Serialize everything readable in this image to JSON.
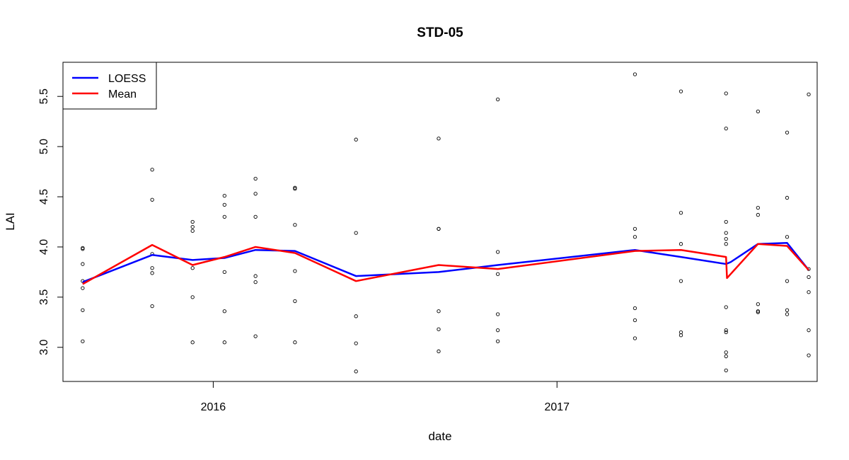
{
  "chart_data": {
    "type": "line",
    "title": "STD-05",
    "xlabel": "date",
    "ylabel": "LAI",
    "x_ticks": [
      "2016",
      "2017"
    ],
    "y_ticks": [
      "3.0",
      "3.5",
      "4.0",
      "4.5",
      "5.0",
      "5.5"
    ],
    "xlim": [
      "2015-07-25",
      "2017-10-05"
    ],
    "ylim": [
      2.66,
      5.84
    ],
    "grid": false,
    "legend_position": "top-left",
    "series": [
      {
        "name": "LOESS",
        "color": "#0000ff",
        "kind": "line",
        "points": [
          [
            "2015-08-15",
            3.65
          ],
          [
            "2015-10-28",
            3.92
          ],
          [
            "2015-12-10",
            3.87
          ],
          [
            "2016-01-13",
            3.89
          ],
          [
            "2016-02-15",
            3.97
          ],
          [
            "2016-03-28",
            3.96
          ],
          [
            "2016-06-01",
            3.71
          ],
          [
            "2016-08-28",
            3.75
          ],
          [
            "2016-10-30",
            3.82
          ],
          [
            "2017-03-25",
            3.97
          ],
          [
            "2017-05-13",
            3.9
          ],
          [
            "2017-06-30",
            3.83
          ],
          [
            "2017-07-05",
            3.85
          ],
          [
            "2017-08-03",
            4.03
          ],
          [
            "2017-09-03",
            4.04
          ],
          [
            "2017-09-26",
            3.77
          ]
        ]
      },
      {
        "name": "Mean",
        "color": "#ff0000",
        "kind": "line",
        "points": [
          [
            "2015-08-15",
            3.63
          ],
          [
            "2015-10-28",
            4.02
          ],
          [
            "2015-12-10",
            3.82
          ],
          [
            "2016-01-13",
            3.9
          ],
          [
            "2016-02-15",
            4.0
          ],
          [
            "2016-03-28",
            3.94
          ],
          [
            "2016-06-01",
            3.66
          ],
          [
            "2016-08-28",
            3.82
          ],
          [
            "2016-10-30",
            3.78
          ],
          [
            "2017-03-25",
            3.96
          ],
          [
            "2017-05-13",
            3.97
          ],
          [
            "2017-06-30",
            3.9
          ],
          [
            "2017-07-01",
            3.69
          ],
          [
            "2017-08-03",
            4.03
          ],
          [
            "2017-09-03",
            4.01
          ],
          [
            "2017-09-26",
            3.77
          ]
        ]
      },
      {
        "name": "",
        "color": "#000000",
        "kind": "scatter",
        "points": [
          [
            "2015-08-15",
            3.99
          ],
          [
            "2015-08-15",
            3.98
          ],
          [
            "2015-08-15",
            3.83
          ],
          [
            "2015-08-15",
            3.66
          ],
          [
            "2015-08-15",
            3.59
          ],
          [
            "2015-08-15",
            3.37
          ],
          [
            "2015-08-15",
            3.06
          ],
          [
            "2015-10-28",
            4.77
          ],
          [
            "2015-10-28",
            4.47
          ],
          [
            "2015-10-28",
            3.93
          ],
          [
            "2015-10-28",
            3.79
          ],
          [
            "2015-10-28",
            3.74
          ],
          [
            "2015-10-28",
            3.41
          ],
          [
            "2015-12-10",
            4.25
          ],
          [
            "2015-12-10",
            4.2
          ],
          [
            "2015-12-10",
            4.16
          ],
          [
            "2015-12-10",
            3.79
          ],
          [
            "2015-12-10",
            3.5
          ],
          [
            "2015-12-10",
            3.05
          ],
          [
            "2016-01-13",
            4.51
          ],
          [
            "2016-01-13",
            4.42
          ],
          [
            "2016-01-13",
            4.3
          ],
          [
            "2016-01-13",
            3.75
          ],
          [
            "2016-01-13",
            3.36
          ],
          [
            "2016-01-13",
            3.05
          ],
          [
            "2016-02-15",
            4.68
          ],
          [
            "2016-02-15",
            4.53
          ],
          [
            "2016-02-15",
            4.3
          ],
          [
            "2016-02-15",
            3.71
          ],
          [
            "2016-02-15",
            3.65
          ],
          [
            "2016-02-15",
            3.11
          ],
          [
            "2016-03-28",
            4.59
          ],
          [
            "2016-03-28",
            4.58
          ],
          [
            "2016-03-28",
            4.22
          ],
          [
            "2016-03-28",
            3.76
          ],
          [
            "2016-03-28",
            3.46
          ],
          [
            "2016-03-28",
            3.05
          ],
          [
            "2016-06-01",
            5.07
          ],
          [
            "2016-06-01",
            4.14
          ],
          [
            "2016-06-01",
            3.31
          ],
          [
            "2016-06-01",
            3.04
          ],
          [
            "2016-06-01",
            2.76
          ],
          [
            "2016-08-28",
            5.08
          ],
          [
            "2016-08-28",
            4.18
          ],
          [
            "2016-08-28",
            4.18
          ],
          [
            "2016-08-28",
            3.36
          ],
          [
            "2016-08-28",
            3.18
          ],
          [
            "2016-08-28",
            2.96
          ],
          [
            "2016-10-30",
            5.47
          ],
          [
            "2016-10-30",
            3.95
          ],
          [
            "2016-10-30",
            3.73
          ],
          [
            "2016-10-30",
            3.33
          ],
          [
            "2016-10-30",
            3.17
          ],
          [
            "2016-10-30",
            3.06
          ],
          [
            "2017-03-25",
            5.72
          ],
          [
            "2017-03-25",
            4.18
          ],
          [
            "2017-03-25",
            4.1
          ],
          [
            "2017-03-25",
            3.39
          ],
          [
            "2017-03-25",
            3.27
          ],
          [
            "2017-03-25",
            3.09
          ],
          [
            "2017-05-13",
            5.55
          ],
          [
            "2017-05-13",
            4.34
          ],
          [
            "2017-05-13",
            4.03
          ],
          [
            "2017-05-13",
            3.66
          ],
          [
            "2017-05-13",
            3.15
          ],
          [
            "2017-05-13",
            3.12
          ],
          [
            "2017-06-30",
            5.53
          ],
          [
            "2017-06-30",
            5.18
          ],
          [
            "2017-06-30",
            4.25
          ],
          [
            "2017-06-30",
            4.14
          ],
          [
            "2017-06-30",
            4.08
          ],
          [
            "2017-06-30",
            4.03
          ],
          [
            "2017-06-30",
            3.4
          ],
          [
            "2017-06-30",
            3.17
          ],
          [
            "2017-06-30",
            3.15
          ],
          [
            "2017-06-30",
            2.95
          ],
          [
            "2017-06-30",
            2.91
          ],
          [
            "2017-06-30",
            2.77
          ],
          [
            "2017-08-03",
            5.35
          ],
          [
            "2017-08-03",
            4.39
          ],
          [
            "2017-08-03",
            4.32
          ],
          [
            "2017-08-03",
            3.43
          ],
          [
            "2017-08-03",
            3.36
          ],
          [
            "2017-08-03",
            3.35
          ],
          [
            "2017-09-03",
            5.14
          ],
          [
            "2017-09-03",
            4.49
          ],
          [
            "2017-09-03",
            4.1
          ],
          [
            "2017-09-03",
            3.66
          ],
          [
            "2017-09-03",
            3.37
          ],
          [
            "2017-09-03",
            3.33
          ],
          [
            "2017-09-26",
            5.52
          ],
          [
            "2017-09-26",
            3.78
          ],
          [
            "2017-09-26",
            3.7
          ],
          [
            "2017-09-26",
            3.55
          ],
          [
            "2017-09-26",
            3.17
          ],
          [
            "2017-09-26",
            2.92
          ]
        ]
      }
    ]
  }
}
